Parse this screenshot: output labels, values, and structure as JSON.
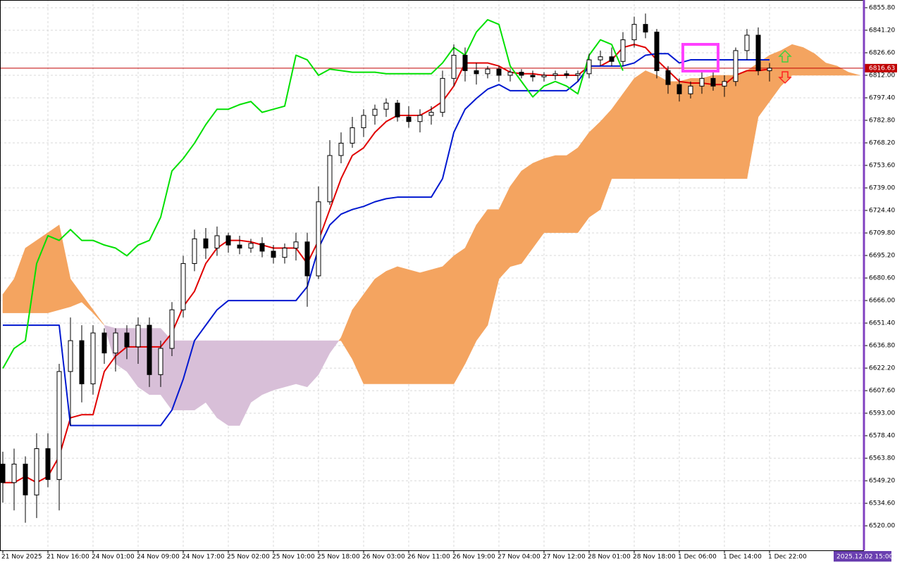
{
  "chart_data": {
    "type": "candlestick",
    "ylim": [
      6504.1,
      6860.8
    ],
    "yticks": [
      {
        "value": 6855.8,
        "label": "6855.80"
      },
      {
        "value": 6841.2,
        "label": "6841.20"
      },
      {
        "value": 6826.6,
        "label": "6826.60"
      },
      {
        "value": 6812,
        "label": "6812.00"
      },
      {
        "value": 6797.4,
        "label": "6797.40"
      },
      {
        "value": 6782.8,
        "label": "6782.80"
      },
      {
        "value": 6768.2,
        "label": "6768.20"
      },
      {
        "value": 6753.6,
        "label": "6753.60"
      },
      {
        "value": 6739,
        "label": "6739.00"
      },
      {
        "value": 6724.4,
        "label": "6724.40"
      },
      {
        "value": 6709.8,
        "label": "6709.80"
      },
      {
        "value": 6695.2,
        "label": "6695.20"
      },
      {
        "value": 6680.6,
        "label": "6680.60"
      },
      {
        "value": 6666,
        "label": "6666.00"
      },
      {
        "value": 6651.4,
        "label": "6651.40"
      },
      {
        "value": 6636.8,
        "label": "6636.80"
      },
      {
        "value": 6622.2,
        "label": "6622.20"
      },
      {
        "value": 6607.6,
        "label": "6607.60"
      },
      {
        "value": 6593,
        "label": "6593.00"
      },
      {
        "value": 6578.4,
        "label": "6578.40"
      },
      {
        "value": 6563.8,
        "label": "6563.80"
      },
      {
        "value": 6549.2,
        "label": "6549.20"
      },
      {
        "value": 6534.6,
        "label": "6534.60"
      },
      {
        "value": 6520,
        "label": "6520.00"
      }
    ],
    "grid": true,
    "time_labels": [
      "21 Nov 2025",
      "21 Nov 16:00",
      "24 Nov 01:00",
      "24 Nov 09:00",
      "24 Nov 17:00",
      "25 Nov 02:00",
      "25 Nov 10:00",
      "25 Nov 18:00",
      "26 Nov 03:00",
      "26 Nov 11:00",
      "26 Nov 19:00",
      "27 Nov 04:00",
      "27 Nov 12:00",
      "28 Nov 01:00",
      "28 Nov 18:00",
      "1 Dec 06:00",
      "1 Dec 14:00",
      "1 Dec 22:00"
    ],
    "cursor_time": "2025.12.02 15:00",
    "last_price": 6816.63,
    "last_price_color": "#c00000",
    "up_color": "#ffffff",
    "down_color": "#000000",
    "open": [
      6560,
      6548,
      6560,
      6540,
      6570,
      6550,
      6620,
      6640,
      6612,
      6645,
      6632,
      6645,
      6636,
      6650,
      6618,
      6635,
      6660,
      6690,
      6706,
      6700,
      6708,
      6702,
      6700,
      6703,
      6698,
      6694,
      6700,
      6704,
      6682,
      6730,
      6760,
      6768,
      6778,
      6786,
      6790,
      6794,
      6785,
      6782,
      6786,
      6788,
      6810,
      6825,
      6815,
      6813,
      6816,
      6812,
      6814,
      6812,
      6811,
      6812,
      6813,
      6812,
      6813,
      6822,
      6824,
      6821,
      6835,
      6845,
      6840,
      6815,
      6806,
      6800,
      6805,
      6810,
      6805,
      6808,
      6828,
      6838,
      6815
    ],
    "high": [
      6568,
      6570,
      6565,
      6580,
      6580,
      6625,
      6655,
      6650,
      6650,
      6648,
      6648,
      6650,
      6655,
      6655,
      6640,
      6665,
      6695,
      6712,
      6713,
      6714,
      6710,
      6708,
      6706,
      6707,
      6702,
      6703,
      6710,
      6710,
      6740,
      6770,
      6775,
      6785,
      6790,
      6793,
      6797,
      6796,
      6792,
      6790,
      6792,
      6815,
      6832,
      6830,
      6820,
      6818,
      6818,
      6816,
      6816,
      6815,
      6814,
      6815,
      6815,
      6815,
      6826,
      6828,
      6830,
      6840,
      6850,
      6852,
      6842,
      6818,
      6810,
      6808,
      6815,
      6814,
      6812,
      6830,
      6842,
      6843,
      6820
    ],
    "low": [
      6535,
      6530,
      6522,
      6525,
      6545,
      6530,
      6585,
      6600,
      6605,
      6625,
      6620,
      6628,
      6625,
      6610,
      6610,
      6630,
      6655,
      6685,
      6693,
      6695,
      6697,
      6696,
      6697,
      6694,
      6690,
      6690,
      6692,
      6662,
      6680,
      6728,
      6755,
      6765,
      6772,
      6780,
      6785,
      6782,
      6778,
      6775,
      6780,
      6785,
      6805,
      6808,
      6806,
      6810,
      6808,
      6808,
      6810,
      6808,
      6808,
      6809,
      6810,
      6808,
      6810,
      6818,
      6818,
      6818,
      6830,
      6836,
      6810,
      6800,
      6795,
      6797,
      6800,
      6802,
      6798,
      6805,
      6822,
      6812,
      6808
    ],
    "close": [
      6548,
      6560,
      6540,
      6570,
      6550,
      6620,
      6640,
      6612,
      6645,
      6632,
      6645,
      6636,
      6650,
      6618,
      6635,
      6660,
      6690,
      6706,
      6700,
      6708,
      6702,
      6700,
      6703,
      6698,
      6694,
      6700,
      6704,
      6682,
      6730,
      6760,
      6768,
      6778,
      6786,
      6790,
      6794,
      6785,
      6782,
      6786,
      6788,
      6810,
      6825,
      6815,
      6813,
      6816,
      6812,
      6814,
      6812,
      6811,
      6812,
      6813,
      6812,
      6813,
      6822,
      6824,
      6821,
      6835,
      6845,
      6840,
      6815,
      6806,
      6800,
      6805,
      6810,
      6805,
      6808,
      6828,
      6838,
      6815,
      6816.63
    ],
    "series": [
      {
        "color": "#e00000",
        "values": [
          6548,
          6548,
          6552,
          6548,
          6552,
          6565,
          6590,
          6592,
          6592,
          6620,
          6630,
          6636,
          6636,
          6636,
          6636,
          6645,
          6662,
          6672,
          6690,
          6700,
          6705,
          6705,
          6704,
          6702,
          6700,
          6700,
          6700,
          6690,
          6705,
          6725,
          6745,
          6760,
          6765,
          6775,
          6782,
          6786,
          6786,
          6786,
          6790,
          6795,
          6805,
          6820,
          6820,
          6820,
          6818,
          6814,
          6813,
          6813,
          6812,
          6812,
          6812,
          6812,
          6818,
          6818,
          6822,
          6830,
          6832,
          6830,
          6822,
          6815,
          6808,
          6807,
          6807,
          6806,
          6806,
          6812,
          6815,
          6815,
          6816
        ]
      },
      {
        "color": "#0018d0",
        "values": [
          6650,
          6650,
          6650,
          6650,
          6650,
          6650,
          6585,
          6585,
          6585,
          6585,
          6585,
          6585,
          6585,
          6585,
          6585,
          6595,
          6615,
          6640,
          6650,
          6660,
          6666,
          6666,
          6666,
          6666,
          6666,
          6666,
          6666,
          6675,
          6700,
          6715,
          6722,
          6725,
          6727,
          6730,
          6732,
          6733,
          6733,
          6733,
          6733,
          6745,
          6775,
          6790,
          6797,
          6803,
          6806,
          6802,
          6802,
          6802,
          6802,
          6802,
          6802,
          6808,
          6818,
          6818,
          6818,
          6818,
          6820,
          6825,
          6826,
          6826,
          6820,
          6822,
          6822,
          6822,
          6822,
          6822,
          6822,
          6822,
          6822
        ]
      },
      {
        "color": "#00e000",
        "values": [
          6622,
          6635,
          6640,
          6690,
          6708,
          6705,
          6712,
          6705,
          6705,
          6702,
          6700,
          6695,
          6702,
          6705,
          6720,
          6750,
          6758,
          6768,
          6780,
          6790,
          6790,
          6793,
          6795,
          6788,
          6790,
          6792,
          6825,
          6822,
          6812,
          6816,
          6815,
          6814,
          6814,
          6814,
          6813,
          6813,
          6813,
          6813,
          6813,
          6820,
          6830,
          6825,
          6840,
          6848,
          6845,
          6818,
          6808,
          6798,
          6805,
          6808,
          6805,
          6800,
          6825,
          6835,
          6832,
          6815,
          null,
          null,
          null,
          null,
          null,
          null,
          null,
          null,
          null,
          null,
          null,
          null,
          null
        ]
      }
    ],
    "cloud": {
      "bull_color": "#f4a460",
      "bear_color": "#d8bfd8",
      "span_a": [
        6670,
        6680,
        6700,
        6705,
        6710,
        6715,
        6680,
        6670,
        6660,
        6650,
        6625,
        6620,
        6610,
        6605,
        6605,
        6595,
        6595,
        6595,
        6600,
        6590,
        6585,
        6585,
        6600,
        6605,
        6608,
        6610,
        6612,
        6610,
        6618,
        6632,
        6642,
        6660,
        6670,
        6680,
        6685,
        6688,
        6686,
        6684,
        6686,
        6688,
        6695,
        6700,
        6715,
        6725,
        6725,
        6740,
        6750,
        6755,
        6758,
        6760,
        6760,
        6765,
        6775,
        6782,
        6790,
        6800,
        6810,
        6815,
        6812,
        6808,
        6808,
        6810,
        6810,
        6812,
        6812,
        6812,
        6815,
        6820,
        6825,
        6828,
        6832,
        6830,
        6826,
        6820,
        6818,
        6814,
        6812
      ],
      "span_b": [
        6658,
        6658,
        6658,
        6658,
        6658,
        6660,
        6662,
        6665,
        6658,
        6650,
        6648,
        6648,
        6648,
        6648,
        6648,
        6640,
        6640,
        6640,
        6640,
        6640,
        6640,
        6640,
        6640,
        6640,
        6640,
        6640,
        6640,
        6640,
        6640,
        6640,
        6640,
        6628,
        6612,
        6612,
        6612,
        6612,
        6612,
        6612,
        6612,
        6612,
        6612,
        6625,
        6640,
        6650,
        6680,
        6688,
        6690,
        6700,
        6710,
        6710,
        6710,
        6710,
        6720,
        6725,
        6745,
        6745,
        6745,
        6745,
        6745,
        6745,
        6745,
        6745,
        6745,
        6745,
        6745,
        6745,
        6745,
        6785,
        6795,
        6805,
        6812,
        6812,
        6812,
        6812,
        6812,
        6812,
        6812
      ]
    }
  }
}
